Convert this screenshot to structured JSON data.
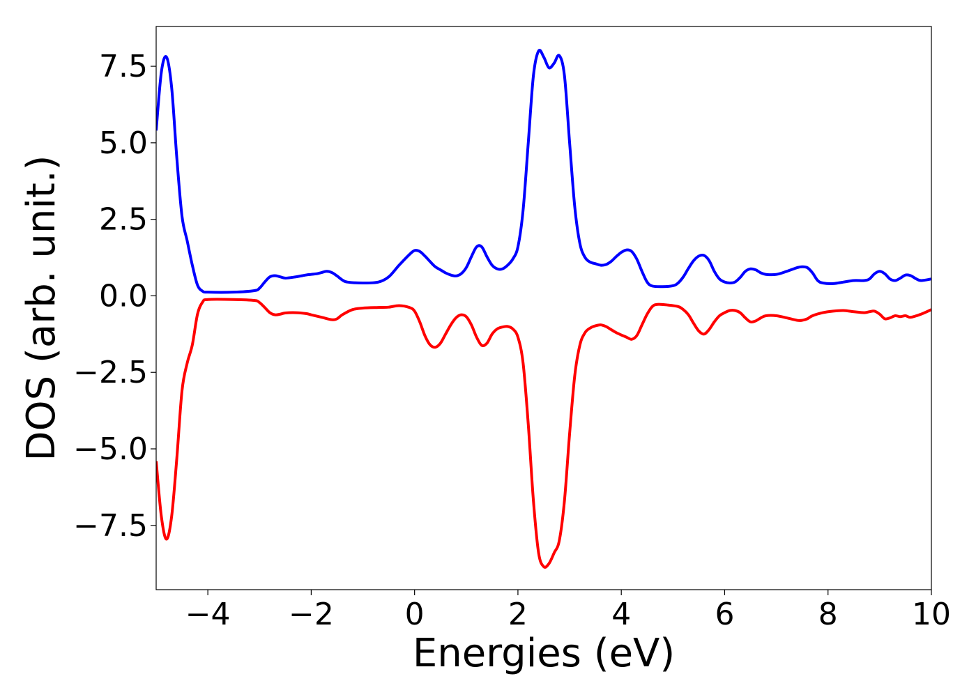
{
  "chart_data": {
    "type": "line",
    "title": "",
    "xlabel": "Energies (eV)",
    "ylabel": "DOS (arb. unit.)",
    "xlim": [
      -5,
      10
    ],
    "ylim": [
      -9.6,
      8.8
    ],
    "grid": false,
    "legend": "none",
    "xticks": [
      {
        "value": -4,
        "label": "−4"
      },
      {
        "value": -2,
        "label": "−2"
      },
      {
        "value": 0,
        "label": "0"
      },
      {
        "value": 2,
        "label": "2"
      },
      {
        "value": 4,
        "label": "4"
      },
      {
        "value": 6,
        "label": "6"
      },
      {
        "value": 8,
        "label": "8"
      },
      {
        "value": 10,
        "label": "10"
      }
    ],
    "yticks": [
      {
        "value": 7.5,
        "label": "7.5"
      },
      {
        "value": 5.0,
        "label": "5.0"
      },
      {
        "value": 2.5,
        "label": "2.5"
      },
      {
        "value": 0.0,
        "label": "0.0"
      },
      {
        "value": -2.5,
        "label": "−2.5"
      },
      {
        "value": -5.0,
        "label": "−5.0"
      },
      {
        "value": -7.5,
        "label": "−7.5"
      }
    ],
    "series": [
      {
        "color": "#0000ff",
        "points": [
          [
            -5.0,
            5.4
          ],
          [
            -4.9,
            7.3
          ],
          [
            -4.8,
            7.8
          ],
          [
            -4.7,
            6.8
          ],
          [
            -4.6,
            4.5
          ],
          [
            -4.5,
            2.6
          ],
          [
            -4.4,
            1.8
          ],
          [
            -4.3,
            1.0
          ],
          [
            -4.2,
            0.35
          ],
          [
            -4.1,
            0.15
          ],
          [
            -4.0,
            0.12
          ],
          [
            -3.5,
            0.12
          ],
          [
            -3.1,
            0.17
          ],
          [
            -3.0,
            0.25
          ],
          [
            -2.9,
            0.45
          ],
          [
            -2.8,
            0.62
          ],
          [
            -2.7,
            0.66
          ],
          [
            -2.6,
            0.62
          ],
          [
            -2.5,
            0.58
          ],
          [
            -2.3,
            0.62
          ],
          [
            -2.1,
            0.68
          ],
          [
            -2.0,
            0.7
          ],
          [
            -1.9,
            0.72
          ],
          [
            -1.8,
            0.76
          ],
          [
            -1.7,
            0.8
          ],
          [
            -1.6,
            0.76
          ],
          [
            -1.5,
            0.65
          ],
          [
            -1.4,
            0.52
          ],
          [
            -1.3,
            0.45
          ],
          [
            -1.0,
            0.42
          ],
          [
            -0.7,
            0.45
          ],
          [
            -0.5,
            0.62
          ],
          [
            -0.3,
            1.0
          ],
          [
            -0.1,
            1.35
          ],
          [
            0.0,
            1.48
          ],
          [
            0.1,
            1.45
          ],
          [
            0.2,
            1.3
          ],
          [
            0.3,
            1.12
          ],
          [
            0.4,
            0.95
          ],
          [
            0.5,
            0.85
          ],
          [
            0.6,
            0.75
          ],
          [
            0.7,
            0.68
          ],
          [
            0.8,
            0.65
          ],
          [
            0.9,
            0.72
          ],
          [
            1.0,
            0.92
          ],
          [
            1.1,
            1.28
          ],
          [
            1.2,
            1.6
          ],
          [
            1.3,
            1.6
          ],
          [
            1.4,
            1.28
          ],
          [
            1.5,
            1.0
          ],
          [
            1.6,
            0.88
          ],
          [
            1.7,
            0.88
          ],
          [
            1.8,
            1.0
          ],
          [
            1.9,
            1.2
          ],
          [
            2.0,
            1.6
          ],
          [
            2.1,
            2.8
          ],
          [
            2.2,
            5.0
          ],
          [
            2.3,
            7.2
          ],
          [
            2.4,
            8.0
          ],
          [
            2.5,
            7.8
          ],
          [
            2.6,
            7.45
          ],
          [
            2.7,
            7.6
          ],
          [
            2.8,
            7.85
          ],
          [
            2.9,
            7.2
          ],
          [
            3.0,
            5.0
          ],
          [
            3.1,
            2.9
          ],
          [
            3.2,
            1.7
          ],
          [
            3.3,
            1.25
          ],
          [
            3.4,
            1.1
          ],
          [
            3.5,
            1.05
          ],
          [
            3.6,
            1.0
          ],
          [
            3.7,
            1.02
          ],
          [
            3.8,
            1.12
          ],
          [
            3.9,
            1.28
          ],
          [
            4.0,
            1.42
          ],
          [
            4.1,
            1.5
          ],
          [
            4.2,
            1.45
          ],
          [
            4.3,
            1.2
          ],
          [
            4.4,
            0.8
          ],
          [
            4.5,
            0.45
          ],
          [
            4.6,
            0.32
          ],
          [
            4.8,
            0.3
          ],
          [
            5.0,
            0.33
          ],
          [
            5.1,
            0.42
          ],
          [
            5.2,
            0.62
          ],
          [
            5.3,
            0.9
          ],
          [
            5.4,
            1.15
          ],
          [
            5.5,
            1.3
          ],
          [
            5.6,
            1.32
          ],
          [
            5.7,
            1.15
          ],
          [
            5.8,
            0.8
          ],
          [
            5.9,
            0.55
          ],
          [
            6.0,
            0.45
          ],
          [
            6.1,
            0.42
          ],
          [
            6.2,
            0.45
          ],
          [
            6.3,
            0.6
          ],
          [
            6.4,
            0.8
          ],
          [
            6.5,
            0.88
          ],
          [
            6.6,
            0.85
          ],
          [
            6.7,
            0.75
          ],
          [
            6.8,
            0.7
          ],
          [
            7.0,
            0.7
          ],
          [
            7.2,
            0.8
          ],
          [
            7.4,
            0.92
          ],
          [
            7.5,
            0.95
          ],
          [
            7.6,
            0.92
          ],
          [
            7.7,
            0.75
          ],
          [
            7.8,
            0.5
          ],
          [
            7.9,
            0.42
          ],
          [
            8.1,
            0.4
          ],
          [
            8.3,
            0.45
          ],
          [
            8.5,
            0.5
          ],
          [
            8.7,
            0.5
          ],
          [
            8.8,
            0.55
          ],
          [
            8.9,
            0.72
          ],
          [
            9.0,
            0.8
          ],
          [
            9.1,
            0.72
          ],
          [
            9.2,
            0.55
          ],
          [
            9.3,
            0.5
          ],
          [
            9.4,
            0.58
          ],
          [
            9.5,
            0.68
          ],
          [
            9.6,
            0.66
          ],
          [
            9.7,
            0.56
          ],
          [
            9.8,
            0.5
          ],
          [
            10.0,
            0.55
          ]
        ]
      },
      {
        "color": "#ff0000",
        "points": [
          [
            -5.0,
            -5.4
          ],
          [
            -4.9,
            -7.2
          ],
          [
            -4.8,
            -7.95
          ],
          [
            -4.7,
            -7.2
          ],
          [
            -4.6,
            -5.3
          ],
          [
            -4.5,
            -3.1
          ],
          [
            -4.4,
            -2.2
          ],
          [
            -4.3,
            -1.6
          ],
          [
            -4.2,
            -0.6
          ],
          [
            -4.1,
            -0.2
          ],
          [
            -4.0,
            -0.12
          ],
          [
            -3.5,
            -0.12
          ],
          [
            -3.1,
            -0.15
          ],
          [
            -3.0,
            -0.22
          ],
          [
            -2.9,
            -0.38
          ],
          [
            -2.8,
            -0.55
          ],
          [
            -2.7,
            -0.62
          ],
          [
            -2.6,
            -0.6
          ],
          [
            -2.5,
            -0.56
          ],
          [
            -2.3,
            -0.55
          ],
          [
            -2.1,
            -0.58
          ],
          [
            -2.0,
            -0.62
          ],
          [
            -1.8,
            -0.7
          ],
          [
            -1.6,
            -0.78
          ],
          [
            -1.5,
            -0.75
          ],
          [
            -1.4,
            -0.62
          ],
          [
            -1.2,
            -0.45
          ],
          [
            -1.0,
            -0.4
          ],
          [
            -0.7,
            -0.38
          ],
          [
            -0.5,
            -0.37
          ],
          [
            -0.3,
            -0.32
          ],
          [
            -0.1,
            -0.38
          ],
          [
            0.0,
            -0.5
          ],
          [
            0.1,
            -0.85
          ],
          [
            0.2,
            -1.3
          ],
          [
            0.3,
            -1.6
          ],
          [
            0.4,
            -1.68
          ],
          [
            0.5,
            -1.55
          ],
          [
            0.6,
            -1.25
          ],
          [
            0.7,
            -0.95
          ],
          [
            0.8,
            -0.72
          ],
          [
            0.9,
            -0.62
          ],
          [
            1.0,
            -0.68
          ],
          [
            1.1,
            -0.95
          ],
          [
            1.2,
            -1.35
          ],
          [
            1.3,
            -1.62
          ],
          [
            1.4,
            -1.55
          ],
          [
            1.5,
            -1.25
          ],
          [
            1.6,
            -1.08
          ],
          [
            1.7,
            -1.02
          ],
          [
            1.8,
            -1.0
          ],
          [
            1.9,
            -1.08
          ],
          [
            2.0,
            -1.35
          ],
          [
            2.1,
            -2.2
          ],
          [
            2.2,
            -4.2
          ],
          [
            2.3,
            -6.7
          ],
          [
            2.4,
            -8.4
          ],
          [
            2.5,
            -8.85
          ],
          [
            2.6,
            -8.75
          ],
          [
            2.7,
            -8.4
          ],
          [
            2.8,
            -8.0
          ],
          [
            2.9,
            -6.7
          ],
          [
            3.0,
            -4.5
          ],
          [
            3.1,
            -2.6
          ],
          [
            3.2,
            -1.6
          ],
          [
            3.3,
            -1.2
          ],
          [
            3.4,
            -1.05
          ],
          [
            3.5,
            -0.98
          ],
          [
            3.6,
            -0.95
          ],
          [
            3.7,
            -1.0
          ],
          [
            3.8,
            -1.1
          ],
          [
            3.9,
            -1.2
          ],
          [
            4.0,
            -1.28
          ],
          [
            4.1,
            -1.35
          ],
          [
            4.2,
            -1.42
          ],
          [
            4.3,
            -1.3
          ],
          [
            4.4,
            -0.95
          ],
          [
            4.5,
            -0.6
          ],
          [
            4.6,
            -0.35
          ],
          [
            4.7,
            -0.28
          ],
          [
            4.9,
            -0.3
          ],
          [
            5.1,
            -0.35
          ],
          [
            5.2,
            -0.45
          ],
          [
            5.3,
            -0.62
          ],
          [
            5.4,
            -0.9
          ],
          [
            5.5,
            -1.15
          ],
          [
            5.6,
            -1.25
          ],
          [
            5.7,
            -1.1
          ],
          [
            5.8,
            -0.85
          ],
          [
            5.9,
            -0.65
          ],
          [
            6.0,
            -0.55
          ],
          [
            6.1,
            -0.48
          ],
          [
            6.2,
            -0.48
          ],
          [
            6.3,
            -0.55
          ],
          [
            6.4,
            -0.72
          ],
          [
            6.5,
            -0.85
          ],
          [
            6.6,
            -0.82
          ],
          [
            6.7,
            -0.72
          ],
          [
            6.8,
            -0.65
          ],
          [
            7.0,
            -0.65
          ],
          [
            7.2,
            -0.72
          ],
          [
            7.4,
            -0.8
          ],
          [
            7.5,
            -0.8
          ],
          [
            7.6,
            -0.75
          ],
          [
            7.7,
            -0.65
          ],
          [
            7.9,
            -0.55
          ],
          [
            8.1,
            -0.5
          ],
          [
            8.3,
            -0.48
          ],
          [
            8.5,
            -0.52
          ],
          [
            8.7,
            -0.55
          ],
          [
            8.8,
            -0.52
          ],
          [
            8.9,
            -0.5
          ],
          [
            9.0,
            -0.6
          ],
          [
            9.1,
            -0.75
          ],
          [
            9.2,
            -0.72
          ],
          [
            9.3,
            -0.65
          ],
          [
            9.4,
            -0.68
          ],
          [
            9.5,
            -0.65
          ],
          [
            9.6,
            -0.7
          ],
          [
            9.8,
            -0.6
          ],
          [
            10.0,
            -0.45
          ]
        ]
      }
    ]
  }
}
